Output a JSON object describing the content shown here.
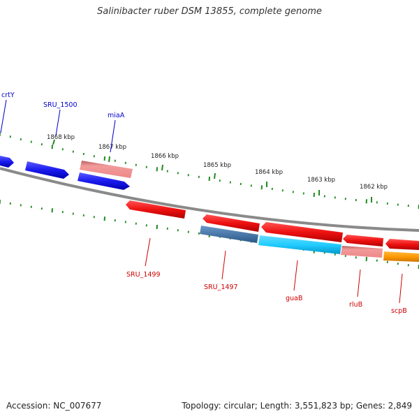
{
  "title": "Salinibacter ruber DSM 13855, complete genome",
  "accession": "Accession: NC_007677",
  "summary": "Topology: circular; Length: 3,551,823 bp; Genes: 2,849",
  "colors": {
    "backbone": "#8a8a8a",
    "tick": "#1f8a1f",
    "forward_label": "#0000cc",
    "reverse_label": "#cc0000",
    "blue": "#1a1aee",
    "red": "#ee1111",
    "pink": "#ee8888",
    "steel": "#4a78a8",
    "cyan": "#22ccff",
    "orange": "#ff9900"
  },
  "scale_ticks": [
    {
      "label": "1868 kbp"
    },
    {
      "label": "1867 kbp"
    },
    {
      "label": "1866 kbp"
    },
    {
      "label": "1865 kbp"
    },
    {
      "label": "1864 kbp"
    },
    {
      "label": "1863 kbp"
    },
    {
      "label": "1862 kbp"
    }
  ],
  "forward_genes": [
    {
      "label": "crtY",
      "color": "blue",
      "shape": "arrow-right"
    },
    {
      "label": "",
      "color": "blue",
      "shape": "arrow-right"
    },
    {
      "label": "SRU_1500",
      "color": "blue",
      "shape": "arrow-right"
    },
    {
      "label": "miaA",
      "color": "pink",
      "shape": "block"
    }
  ],
  "reverse_genes": [
    {
      "label": "SRU_1499",
      "color": "red",
      "shape": "arrow-left"
    },
    {
      "label": "SRU_1497",
      "color": "red",
      "shape": "arrow-left"
    },
    {
      "label": "",
      "color": "steel",
      "shape": "block"
    },
    {
      "label": "guaB",
      "color": "red",
      "shape": "arrow-left"
    },
    {
      "label": "",
      "color": "cyan",
      "shape": "block"
    },
    {
      "label": "rluB",
      "color": "red",
      "shape": "arrow-left"
    },
    {
      "label": "",
      "color": "pink",
      "shape": "block"
    },
    {
      "label": "scpB",
      "color": "red",
      "shape": "arrow-left"
    },
    {
      "label": "",
      "color": "orange",
      "shape": "block"
    }
  ]
}
